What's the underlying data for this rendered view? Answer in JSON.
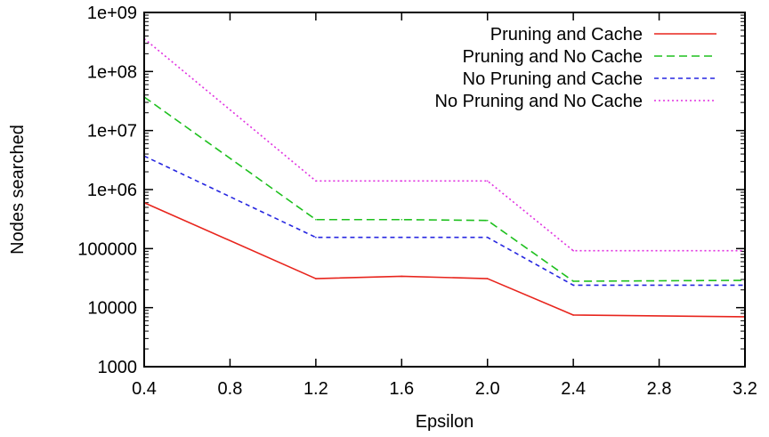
{
  "chart_data": {
    "type": "line",
    "title": "",
    "xlabel": "Epsilon",
    "ylabel": "Nodes searched",
    "x": [
      0.4,
      1.2,
      1.6,
      2.0,
      2.4,
      3.2
    ],
    "xlim": [
      0.4,
      3.2
    ],
    "ylim": [
      1000,
      1000000000
    ],
    "yscale": "log",
    "grid": false,
    "legend_position": "top-right",
    "x_ticks": [
      "0.4",
      "0.8",
      "1.2",
      "1.6",
      "2.0",
      "2.4",
      "2.8",
      "3.2"
    ],
    "y_ticks": [
      "1000",
      "10000",
      "100000",
      "1e+06",
      "1e+07",
      "1e+08",
      "1e+09"
    ],
    "series": [
      {
        "name": "Pruning and Cache",
        "color": "#e8251d",
        "dash": "solid",
        "values": [
          600000,
          31000,
          34000,
          31000,
          7500,
          7000
        ]
      },
      {
        "name": "Pruning and No Cache",
        "color": "#1ec01e",
        "dash": "dashed",
        "values": [
          37000000,
          310000,
          310000,
          300000,
          28000,
          29000
        ]
      },
      {
        "name": "No Pruning and Cache",
        "color": "#2626e0",
        "dash": "short-dashed",
        "values": [
          3700000,
          155000,
          155000,
          155000,
          24000,
          24000
        ]
      },
      {
        "name": "No Pruning and No Cache",
        "color": "#e030e0",
        "dash": "dotted",
        "values": [
          360000000,
          1400000,
          1400000,
          1400000,
          92000,
          92000
        ]
      }
    ]
  }
}
